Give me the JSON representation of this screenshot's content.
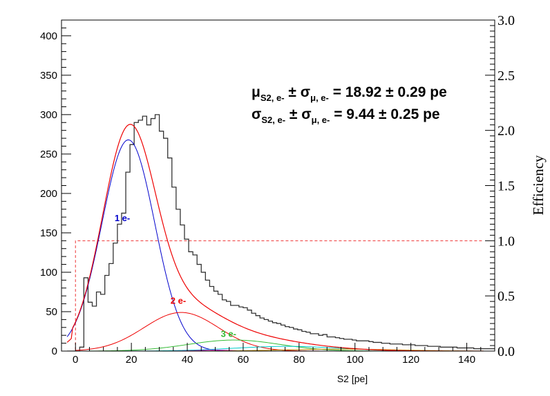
{
  "chart_data": {
    "type": "line",
    "xlabel": "S2 [pe]",
    "ylabel": "",
    "y2label": "Efficiency",
    "xlim": [
      -5,
      150
    ],
    "ylim": [
      0,
      420
    ],
    "y2lim": [
      0,
      3.0
    ],
    "x_ticks": [
      0,
      20,
      40,
      60,
      80,
      100,
      120,
      140
    ],
    "y_ticks": [
      0,
      50,
      100,
      150,
      200,
      250,
      300,
      350,
      400
    ],
    "y2_ticks": [
      "0.0",
      "0.5",
      "1.0",
      "1.5",
      "2.0",
      "2.5",
      "3.0"
    ],
    "grid": false,
    "histogram": {
      "name": "data",
      "bin_width": 1.5,
      "x_start": -3,
      "counts": [
        0,
        0,
        0,
        5,
        93,
        62,
        57,
        75,
        72,
        96,
        111,
        137,
        161,
        175,
        227,
        262,
        290,
        293,
        298,
        287,
        295,
        300,
        279,
        270,
        245,
        208,
        180,
        160,
        142,
        126,
        122,
        110,
        100,
        90,
        82,
        76,
        72,
        65,
        63,
        58,
        58,
        56,
        55,
        52,
        48,
        45,
        42,
        40,
        38,
        36,
        35,
        33,
        31,
        30,
        28,
        27,
        25,
        24,
        22,
        22,
        20,
        21,
        18,
        18,
        17,
        16,
        15,
        15,
        14,
        13,
        13,
        13,
        12,
        11,
        11,
        10,
        10,
        9,
        9,
        9,
        8,
        8,
        8,
        7,
        7,
        7,
        6,
        6,
        6,
        5,
        5,
        5,
        5,
        4,
        4,
        4,
        4,
        3,
        3,
        3,
        3,
        3,
        3,
        3,
        2,
        2,
        2,
        2,
        2,
        2,
        2,
        2,
        1,
        1,
        1,
        1,
        1,
        1,
        1,
        1,
        1,
        0,
        0,
        0,
        0,
        0,
        0,
        0,
        0,
        0,
        0,
        0,
        0,
        0,
        0,
        0,
        0,
        0,
        0,
        0,
        0,
        0,
        0,
        0,
        0,
        0,
        0,
        0,
        0,
        0,
        0,
        0,
        0
      ]
    },
    "series": [
      {
        "name": "",
        "color": "#ee0000",
        "shape": "total",
        "x_range": [
          -3,
          146
        ]
      },
      {
        "name": "1 e-",
        "color": "#0000cc",
        "mu": 18.92,
        "sigma": 9.44,
        "amp": 268,
        "x_range": [
          -3,
          60
        ]
      },
      {
        "name": "2 e-",
        "color": "#ee0000",
        "mu": 37.84,
        "sigma": 13.35,
        "amp": 49,
        "x_range": [
          0,
          100
        ]
      },
      {
        "name": "3 e-",
        "color": "#33bb33",
        "mu": 56.76,
        "sigma": 16.35,
        "amp": 14,
        "x_range": [
          5,
          130
        ]
      },
      {
        "name": "",
        "color": "#00cccc",
        "mu": 75.7,
        "sigma": 18.9,
        "amp": 6,
        "x_range": [
          0,
          146
        ]
      },
      {
        "name": "",
        "color": "#cc00cc",
        "mu": 50,
        "sigma": 6,
        "amp": 1.2,
        "x_range": [
          35,
          90
        ]
      },
      {
        "name": "",
        "color": "#bb8800",
        "mu": 95,
        "sigma": 20,
        "amp": 2.5,
        "x_range": [
          40,
          146
        ]
      }
    ],
    "efficiency": {
      "color": "#ee3333",
      "threshold_x": 0,
      "step_x": 0,
      "plateau": 1.0,
      "x_range": [
        -3,
        146
      ]
    },
    "annotations": {
      "line1": {
        "sym": "μ",
        "sub": "S2, e-",
        "pm": " ± σ",
        "sub2": "μ, e-",
        "value": " = 18.92 ± 0.29 pe"
      },
      "line2": {
        "sym": "σ",
        "sub": "S2, e-",
        "pm": " ± σ",
        "sub2": "μ, e-",
        "value": " = 9.44 ± 0.25 pe"
      }
    },
    "component_labels": [
      {
        "text": "1 e-",
        "color": "#0000cc",
        "x": 14,
        "y": 165
      },
      {
        "text": "2 e-",
        "color": "#ee0000",
        "x": 34,
        "y": 60
      },
      {
        "text": "3 e-",
        "color": "#33bb33",
        "x": 52,
        "y": 18
      }
    ]
  }
}
